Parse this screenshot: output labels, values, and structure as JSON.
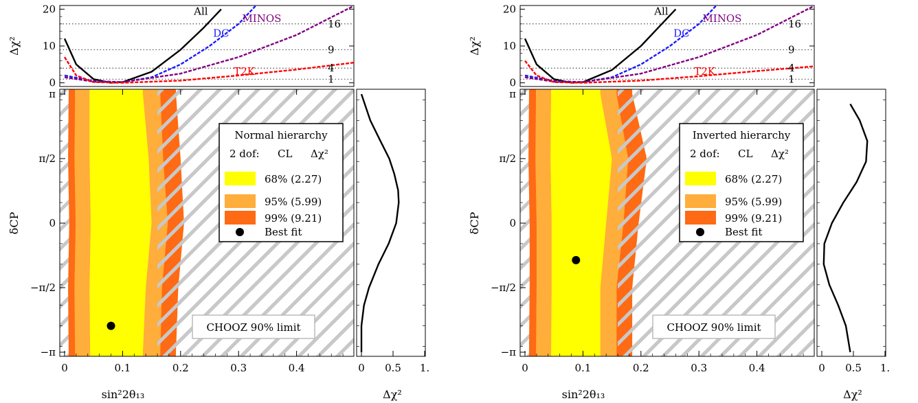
{
  "chart_data": [
    {
      "type": "contour",
      "legend": {
        "title": "Normal hierarchy",
        "dof_label": "2 dof:",
        "cl_header": "CL",
        "dchi_header": "Δχ²",
        "entries": [
          {
            "label": "68% (2.27)",
            "color": "#ffff00"
          },
          {
            "label": "95% (5.99)",
            "color": "#ffad3b"
          },
          {
            "label": "99% (9.21)",
            "color": "#ff6a14"
          }
        ],
        "best_fit_label": "Best fit"
      },
      "chooz_label": "CHOOZ 90% limit",
      "best_fit": {
        "x": 0.08,
        "y": -2.5
      },
      "chooz_limit": 0.16,
      "xlabel": "sin²2θ₁₃",
      "ylabel": "δCP",
      "xlim": [
        0,
        0.5
      ],
      "ylim": [
        -3.1416,
        3.1416
      ],
      "x_ticks": [
        "0",
        "0.1",
        "0.2",
        "0.3",
        "0.4"
      ],
      "y_ticks": [
        "−π",
        "−π/2",
        "0",
        "π/2",
        "π"
      ],
      "contours": {
        "y": [
          -3.14,
          -1.57,
          0.0,
          1.57,
          3.14
        ],
        "c68": {
          "left": [
            0.044,
            0.043,
            0.045,
            0.043,
            0.043
          ],
          "right": [
            0.135,
            0.14,
            0.15,
            0.145,
            0.135
          ]
        },
        "c95": {
          "left": [
            0.018,
            0.017,
            0.019,
            0.017,
            0.018
          ],
          "right": [
            0.165,
            0.168,
            0.178,
            0.17,
            0.165
          ]
        },
        "c99": {
          "left": [
            0.007,
            0.006,
            0.008,
            0.006,
            0.007
          ],
          "right": [
            0.192,
            0.196,
            0.206,
            0.2,
            0.192
          ]
        }
      },
      "top_panel": {
        "ylabel": "Δχ²",
        "ylim": [
          -1,
          21
        ],
        "y_ticks": [
          "0",
          "10",
          "20"
        ],
        "levels": [
          1,
          4,
          9,
          16
        ],
        "level_labels": [
          "1",
          "4",
          "9",
          "16"
        ],
        "series": [
          {
            "name": "All",
            "color": "#000000",
            "x": [
              0,
              0.02,
              0.05,
              0.08,
              0.1,
              0.15,
              0.2,
              0.24,
              0.27
            ],
            "y": [
              12,
              5,
              1,
              0,
              0.2,
              3,
              9,
              15,
              20
            ]
          },
          {
            "name": "DC",
            "color": "#1a1aff",
            "x": [
              0,
              0.05,
              0.1,
              0.15,
              0.2,
              0.25,
              0.3,
              0.33
            ],
            "y": [
              2,
              0.5,
              0.2,
              1.5,
              5,
              10,
              16,
              21
            ]
          },
          {
            "name": "MINOS",
            "color": "#800080",
            "x": [
              0,
              0.05,
              0.1,
              0.2,
              0.3,
              0.4,
              0.5
            ],
            "y": [
              1.5,
              0.3,
              0.2,
              2.5,
              7,
              13,
              21
            ]
          },
          {
            "name": "T2K",
            "color": "#ff0000",
            "x": [
              0,
              0.02,
              0.05,
              0.1,
              0.2,
              0.3,
              0.4,
              0.5
            ],
            "y": [
              7,
              2,
              0.2,
              0,
              0.6,
              2,
              3.6,
              5.5
            ]
          }
        ]
      },
      "side_panel": {
        "xlabel": "Δχ²",
        "xlim": [
          0,
          1
        ],
        "x_ticks": [
          "0",
          "0.5",
          "1."
        ],
        "curve": {
          "y": [
            -3.14,
            -2.5,
            -2.0,
            -1.57,
            -1.0,
            -0.5,
            0.0,
            0.5,
            0.8,
            1.2,
            1.57,
            2.0,
            2.5,
            3.14
          ],
          "x": [
            0.0,
            0.0,
            0.04,
            0.12,
            0.27,
            0.43,
            0.55,
            0.59,
            0.58,
            0.52,
            0.44,
            0.3,
            0.14,
            0.0
          ]
        }
      }
    },
    {
      "type": "contour",
      "legend": {
        "title": "Inverted hierarchy",
        "dof_label": "2 dof:",
        "cl_header": "CL",
        "dchi_header": "Δχ²",
        "entries": [
          {
            "label": "68% (2.27)",
            "color": "#ffff00"
          },
          {
            "label": "95% (5.99)",
            "color": "#ffad3b"
          },
          {
            "label": "99% (9.21)",
            "color": "#ff6a14"
          }
        ],
        "best_fit_label": "Best fit"
      },
      "chooz_label": "CHOOZ 90% limit",
      "best_fit": {
        "x": 0.088,
        "y": -0.9
      },
      "chooz_limit": 0.16,
      "xlabel": "sin²2θ₁₃",
      "ylabel": "δCP",
      "xlim": [
        0,
        0.5
      ],
      "ylim": [
        -3.1416,
        3.1416
      ],
      "x_ticks": [
        "0",
        "0.1",
        "0.2",
        "0.3",
        "0.4"
      ],
      "y_ticks": [
        "−π",
        "−π/2",
        "0",
        "π/2",
        "π"
      ],
      "contours": {
        "y": [
          -3.14,
          -1.57,
          0.0,
          1.57,
          3.14
        ],
        "c68": {
          "left": [
            0.045,
            0.046,
            0.046,
            0.044,
            0.045
          ],
          "right": [
            0.13,
            0.13,
            0.14,
            0.15,
            0.13
          ]
        },
        "c95": {
          "left": [
            0.019,
            0.02,
            0.02,
            0.018,
            0.019
          ],
          "right": [
            0.158,
            0.158,
            0.17,
            0.178,
            0.158
          ]
        },
        "c99": {
          "left": [
            0.007,
            0.008,
            0.008,
            0.006,
            0.007
          ],
          "right": [
            0.185,
            0.185,
            0.196,
            0.21,
            0.185
          ]
        }
      },
      "top_panel": {
        "ylabel": "Δχ²",
        "ylim": [
          -1,
          21
        ],
        "y_ticks": [
          "0",
          "10",
          "20"
        ],
        "levels": [
          1,
          4,
          9,
          16
        ],
        "level_labels": [
          "1",
          "4",
          "9",
          "16"
        ],
        "series": [
          {
            "name": "All",
            "color": "#000000",
            "x": [
              0,
              0.02,
              0.05,
              0.08,
              0.1,
              0.15,
              0.2,
              0.23,
              0.26
            ],
            "y": [
              12,
              5,
              1,
              0,
              0.2,
              3.5,
              10,
              15,
              20
            ]
          },
          {
            "name": "DC",
            "color": "#1a1aff",
            "x": [
              0,
              0.05,
              0.1,
              0.15,
              0.2,
              0.25,
              0.3,
              0.33
            ],
            "y": [
              2,
              0.5,
              0.2,
              1.5,
              5,
              10,
              16,
              21
            ]
          },
          {
            "name": "MINOS",
            "color": "#800080",
            "x": [
              0,
              0.05,
              0.1,
              0.2,
              0.3,
              0.4,
              0.5
            ],
            "y": [
              1.5,
              0.3,
              0.2,
              2.5,
              7,
              13,
              21
            ]
          },
          {
            "name": "T2K",
            "color": "#ff0000",
            "x": [
              0,
              0.02,
              0.05,
              0.1,
              0.2,
              0.3,
              0.4,
              0.5
            ],
            "y": [
              6,
              2,
              0.2,
              0,
              0.6,
              1.8,
              3.2,
              4.5
            ]
          }
        ]
      },
      "side_panel": {
        "xlabel": "Δχ²",
        "xlim": [
          0,
          1
        ],
        "x_ticks": [
          "0",
          "0.5",
          "1."
        ],
        "curve": {
          "y": [
            -3.14,
            -2.5,
            -2.0,
            -1.5,
            -1.0,
            -0.5,
            0.0,
            0.5,
            1.0,
            1.5,
            2.0,
            2.5,
            2.9
          ],
          "x": [
            0.45,
            0.38,
            0.26,
            0.12,
            0.03,
            0.04,
            0.16,
            0.34,
            0.55,
            0.7,
            0.72,
            0.6,
            0.45
          ]
        }
      }
    }
  ]
}
